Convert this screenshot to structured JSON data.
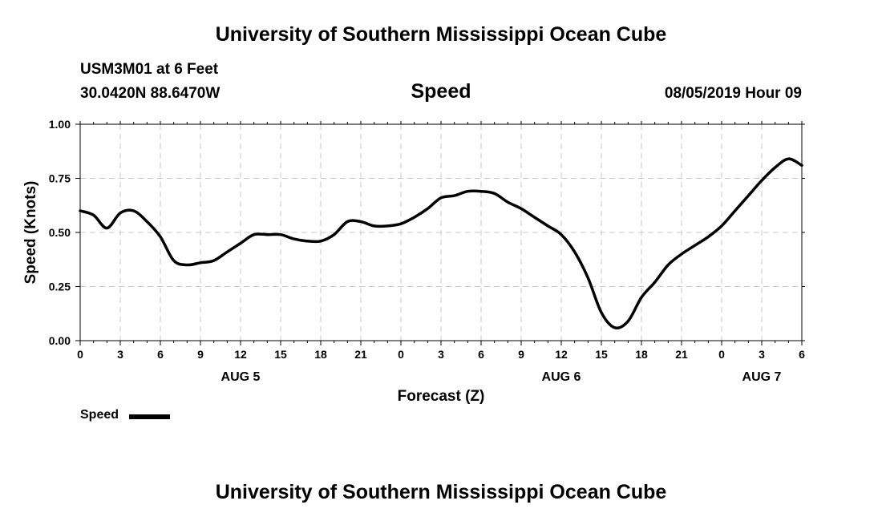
{
  "header": {
    "title": "University of Southern Mississippi Ocean Cube",
    "station": "USM3M01 at 6 Feet",
    "coords": "30.0420N 88.6470W",
    "chart_title": "Speed",
    "datetime": "08/05/2019 Hour 09"
  },
  "footer": {
    "title": "University of Southern Mississippi Ocean Cube"
  },
  "legend": {
    "label": "Speed"
  },
  "chart_data": {
    "type": "line",
    "title": "Speed",
    "xlabel": "Forecast (Z)",
    "ylabel": "Speed (Knots)",
    "xlim": [
      0,
      54
    ],
    "ylim": [
      0,
      1
    ],
    "x_unit": "hours from 00Z Aug 5",
    "x_ticks": [
      0,
      3,
      6,
      9,
      12,
      15,
      18,
      21,
      24,
      27,
      30,
      33,
      36,
      39,
      42,
      45,
      48,
      51,
      54
    ],
    "x_tick_labels": [
      "0",
      "3",
      "6",
      "9",
      "12",
      "15",
      "18",
      "21",
      "0",
      "3",
      "6",
      "9",
      "12",
      "15",
      "18",
      "21",
      "0",
      "3",
      "6"
    ],
    "day_labels": [
      {
        "hour": 12,
        "label": "AUG 5"
      },
      {
        "hour": 36,
        "label": "AUG 6"
      },
      {
        "hour": 51,
        "label": "AUG 7"
      }
    ],
    "y_ticks": [
      0,
      0.25,
      0.5,
      0.75,
      1.0
    ],
    "y_tick_labels": [
      "0.00",
      "0.25",
      "0.50",
      "0.75",
      "1.00"
    ],
    "grid": true,
    "series": [
      {
        "name": "Speed",
        "color": "#000000",
        "x": [
          0,
          1,
          2,
          3,
          4,
          5,
          6,
          7,
          8,
          9,
          10,
          11,
          12,
          13,
          14,
          15,
          16,
          17,
          18,
          19,
          20,
          21,
          22,
          23,
          24,
          25,
          26,
          27,
          28,
          29,
          30,
          31,
          32,
          33,
          34,
          35,
          36,
          37,
          38,
          39,
          40,
          41,
          42,
          43,
          44,
          45,
          46,
          47,
          48,
          49,
          50,
          51,
          52,
          53,
          54
        ],
        "values": [
          0.6,
          0.58,
          0.52,
          0.59,
          0.6,
          0.55,
          0.48,
          0.37,
          0.35,
          0.36,
          0.37,
          0.41,
          0.45,
          0.49,
          0.49,
          0.49,
          0.47,
          0.46,
          0.46,
          0.49,
          0.55,
          0.55,
          0.53,
          0.53,
          0.54,
          0.57,
          0.61,
          0.66,
          0.67,
          0.69,
          0.69,
          0.68,
          0.64,
          0.61,
          0.57,
          0.53,
          0.49,
          0.41,
          0.29,
          0.13,
          0.06,
          0.09,
          0.2,
          0.27,
          0.35,
          0.4,
          0.44,
          0.48,
          0.53,
          0.6,
          0.67,
          0.74,
          0.8,
          0.84,
          0.81
        ]
      }
    ]
  }
}
